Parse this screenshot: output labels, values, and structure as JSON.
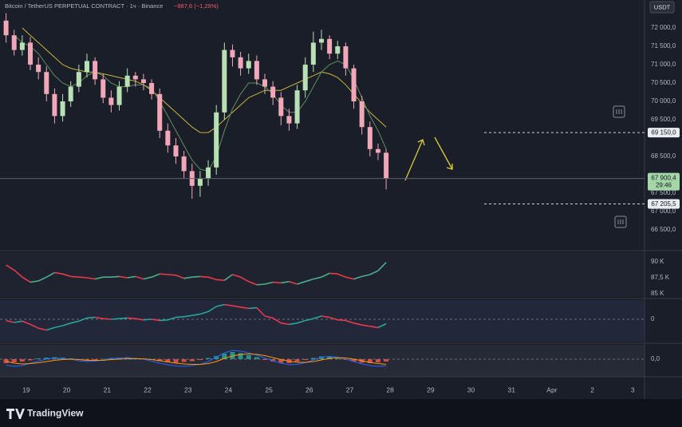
{
  "header": {
    "title": "Bitcoin / TetherUS PERPETUAL CONTRACT · 1ч · Binance",
    "change": "−887,6 (−1,29%)",
    "currency": "USDT"
  },
  "footer": {
    "brand": "TradingView"
  },
  "chart_data": [
    {
      "type": "candlestick",
      "up_color": "#b9e0b4",
      "down_color": "#f2a7b8",
      "x": [
        -0.5,
        -0.3,
        -0.1,
        0.1,
        0.3,
        0.5,
        0.7,
        0.9,
        1.1,
        1.3,
        1.5,
        1.7,
        1.9,
        2.1,
        2.3,
        2.5,
        2.7,
        2.9,
        3.1,
        3.3,
        3.5,
        3.7,
        3.9,
        4.1,
        4.3,
        4.5,
        4.7,
        4.9,
        5.1,
        5.3,
        5.5,
        5.7,
        5.9,
        6.1,
        6.3,
        6.5,
        6.7,
        6.9,
        7.1,
        7.3,
        7.5,
        7.7,
        7.9,
        8.1,
        8.3,
        8.5,
        8.7,
        8.9
      ],
      "open": [
        72200,
        71800,
        71400,
        71600,
        71000,
        70800,
        70200,
        69600,
        70000,
        70400,
        70800,
        71100,
        70600,
        70100,
        69900,
        70400,
        70700,
        70600,
        70500,
        70200,
        69200,
        68800,
        68500,
        68100,
        67700,
        67900,
        68200,
        69700,
        71400,
        71200,
        70900,
        71100,
        70600,
        70400,
        70100,
        69600,
        69400,
        70300,
        71000,
        71600,
        71700,
        71300,
        71500,
        70900,
        70000,
        69300,
        68700,
        68600
      ],
      "high": [
        72400,
        71950,
        71800,
        71750,
        71200,
        70950,
        70350,
        70200,
        70550,
        71000,
        71300,
        71200,
        70750,
        70300,
        70550,
        70900,
        70800,
        70750,
        70600,
        70350,
        69400,
        69000,
        68650,
        68300,
        68100,
        68400,
        69900,
        71600,
        71550,
        71350,
        71300,
        71250,
        70750,
        70550,
        70250,
        69800,
        70450,
        71200,
        71900,
        71950,
        71800,
        71650,
        71600,
        71000,
        70150,
        69450,
        68850,
        68700
      ],
      "low": [
        71600,
        71250,
        71250,
        70850,
        70600,
        70000,
        69400,
        69450,
        69850,
        70250,
        70650,
        70450,
        69950,
        69700,
        69750,
        70250,
        70400,
        70300,
        70050,
        69000,
        68600,
        68300,
        67900,
        67350,
        67400,
        67700,
        68000,
        69500,
        70950,
        70700,
        70750,
        70450,
        70200,
        69900,
        69350,
        69200,
        69250,
        70100,
        70800,
        71400,
        71150,
        71150,
        70700,
        69800,
        69100,
        68500,
        68400,
        67600
      ],
      "close": [
        71800,
        71400,
        71600,
        71000,
        70800,
        70200,
        69600,
        70000,
        70400,
        70800,
        71100,
        70600,
        70100,
        69900,
        70400,
        70700,
        70600,
        70500,
        70200,
        69200,
        68800,
        68500,
        68100,
        67700,
        67900,
        68200,
        69700,
        71400,
        71200,
        70900,
        71100,
        70600,
        70400,
        70100,
        69600,
        69400,
        70300,
        71000,
        71600,
        71700,
        71300,
        71500,
        70900,
        70000,
        69300,
        68700,
        68600,
        67900.4
      ],
      "series": [
        {
          "color": "#c9b33c",
          "values": [
            null,
            null,
            72000,
            71800,
            71600,
            71400,
            71200,
            71000,
            70900,
            70850,
            70800,
            70800,
            70750,
            70700,
            70650,
            70600,
            70550,
            70450,
            70300,
            70100,
            69900,
            69700,
            69500,
            69300,
            69150,
            69150,
            69300,
            69500,
            69700,
            69900,
            70100,
            70200,
            70300,
            70300,
            70300,
            70400,
            70500,
            70600,
            70700,
            70800,
            70750,
            70650,
            70450,
            70200,
            69950,
            69700,
            69500,
            69300
          ]
        },
        {
          "color": "#5e8f5c",
          "values": [
            null,
            71800,
            71600,
            71500,
            71300,
            71000,
            70700,
            70500,
            70400,
            70500,
            70700,
            70800,
            70700,
            70500,
            70400,
            70400,
            70450,
            70450,
            70350,
            70000,
            69600,
            69200,
            68800,
            68400,
            68150,
            68100,
            68500,
            69200,
            69800,
            70200,
            70500,
            70500,
            70400,
            70200,
            69900,
            69700,
            69700,
            70000,
            70400,
            70800,
            71000,
            71100,
            71000,
            70600,
            70100,
            69600,
            69200,
            68700
          ]
        }
      ],
      "xlim": [
        -0.65,
        15.29
      ],
      "xticks": [
        {
          "value": 0,
          "label": "19"
        },
        {
          "value": 1,
          "label": "20"
        },
        {
          "value": 2,
          "label": "21"
        },
        {
          "value": 3,
          "label": "22"
        },
        {
          "value": 4,
          "label": "23"
        },
        {
          "value": 5,
          "label": "24"
        },
        {
          "value": 6,
          "label": "25"
        },
        {
          "value": 7,
          "label": "26"
        },
        {
          "value": 8,
          "label": "27"
        },
        {
          "value": 9,
          "label": "28"
        },
        {
          "value": 10,
          "label": "29"
        },
        {
          "value": 11,
          "label": "30"
        },
        {
          "value": 12,
          "label": "31"
        },
        {
          "value": 13,
          "label": "Apr"
        },
        {
          "value": 14,
          "label": "2"
        },
        {
          "value": 15,
          "label": "3"
        }
      ],
      "ylim": [
        65978,
        72761
      ],
      "yticks": [
        {
          "value": 72000,
          "label": "72 000,0"
        },
        {
          "value": 71500,
          "label": "71 500,0"
        },
        {
          "value": 71000,
          "label": "71 000,0"
        },
        {
          "value": 70500,
          "label": "70 500,0"
        },
        {
          "value": 70000,
          "label": "70 000,0"
        },
        {
          "value": 69500,
          "label": "69 500,0"
        },
        {
          "value": 68500,
          "label": "68 500,0"
        },
        {
          "value": 67500,
          "label": "67 500,0"
        },
        {
          "value": 67000,
          "label": "67 000,0"
        },
        {
          "value": 66500,
          "label": "66 500,0"
        }
      ],
      "price_lines": [
        {
          "value": 69150,
          "label": "69 150,0"
        },
        {
          "value": 67205.5,
          "label": "67 205,5"
        }
      ],
      "last_price": {
        "value": 67900.4,
        "label": "67 900,4",
        "countdown": "29:46"
      },
      "grid": false
    },
    {
      "type": "line",
      "up_color": "#4caf8a",
      "down_color": "#e8394a",
      "values": [
        89500,
        88700,
        87600,
        86800,
        87000,
        87600,
        88300,
        88100,
        87700,
        87600,
        87500,
        87300,
        87600,
        87600,
        87700,
        87500,
        87700,
        87300,
        87600,
        88100,
        88000,
        87900,
        87400,
        87600,
        87700,
        87600,
        87200,
        87100,
        88000,
        87600,
        86900,
        86400,
        86500,
        86800,
        86700,
        86900,
        86500,
        86900,
        87300,
        87600,
        88200,
        88100,
        87600,
        87300,
        87700,
        88000,
        88600,
        89900
      ],
      "ylim": [
        84500,
        91500
      ],
      "yticks": [
        {
          "value": 90000,
          "label": "90 K"
        },
        {
          "value": 87500,
          "label": "87,5 K"
        },
        {
          "value": 85000,
          "label": "85 K"
        }
      ],
      "grid": false
    },
    {
      "type": "line",
      "up_color": "#26a69a",
      "down_color": "#e8394a",
      "values": [
        -0.2,
        -0.5,
        -0.3,
        -0.8,
        -1.4,
        -1.7,
        -1.3,
        -1.0,
        -0.6,
        -0.3,
        0.2,
        0.3,
        0.1,
        0.0,
        0.1,
        0.2,
        0.1,
        -0.1,
        0.0,
        -0.2,
        -0.1,
        0.3,
        0.4,
        0.6,
        0.8,
        1.2,
        2.0,
        2.3,
        2.1,
        1.9,
        1.7,
        1.8,
        0.5,
        0.2,
        -0.6,
        -0.8,
        -0.6,
        -0.2,
        0.1,
        0.5,
        0.3,
        -0.1,
        -0.2,
        -0.6,
        -0.9,
        -1.1,
        -1.3,
        -0.7
      ],
      "ylim": [
        -3.5,
        3
      ],
      "yticks": [
        0
      ],
      "grid": true
    },
    {
      "type": "macd",
      "up_color": "#26a69a",
      "down_color": "#ef5350",
      "values": [
        -1.0,
        -0.8,
        -0.6,
        -0.3,
        0.2,
        0.4,
        0.5,
        0.4,
        0.2,
        -0.1,
        -0.3,
        -0.2,
        0.1,
        0.3,
        0.4,
        0.5,
        0.3,
        0.1,
        -0.2,
        -0.5,
        -0.8,
        -0.9,
        -0.7,
        -0.5,
        -0.2,
        0.3,
        0.8,
        1.4,
        1.8,
        1.5,
        1.0,
        0.5,
        -0.2,
        -0.6,
        -0.9,
        -1.0,
        -0.6,
        -0.2,
        0.3,
        0.7,
        0.6,
        0.2,
        -0.2,
        -0.6,
        -0.9,
        -1.0,
        -0.8,
        -0.6
      ],
      "series": [
        {
          "color": "#2962ff",
          "values": [
            -1.5,
            -1.8,
            -1.6,
            -1.0,
            -0.5,
            0.0,
            0.3,
            0.2,
            0.0,
            -0.4,
            -0.6,
            -0.5,
            -0.2,
            0.2,
            0.3,
            0.4,
            0.2,
            0.0,
            -0.5,
            -1.0,
            -1.4,
            -1.7,
            -1.8,
            -1.6,
            -1.3,
            -0.6,
            0.5,
            1.6,
            2.2,
            2.0,
            1.6,
            1.0,
            0.3,
            -0.4,
            -1.0,
            -1.4,
            -1.3,
            -0.9,
            -0.2,
            0.5,
            0.7,
            0.5,
            0.0,
            -0.6,
            -1.2,
            -1.6,
            -1.8,
            -1.7
          ]
        },
        {
          "color": "#ff9800",
          "values": [
            -0.5,
            -1.0,
            -1.2,
            -1.1,
            -0.9,
            -0.6,
            -0.3,
            -0.1,
            0.0,
            -0.1,
            -0.3,
            -0.3,
            -0.3,
            -0.1,
            0.0,
            0.1,
            0.1,
            0.1,
            -0.1,
            -0.4,
            -0.7,
            -1.0,
            -1.2,
            -1.3,
            -1.3,
            -1.1,
            -0.6,
            0.2,
            0.8,
            1.2,
            1.3,
            1.2,
            0.9,
            0.4,
            -0.1,
            -0.5,
            -0.8,
            -0.8,
            -0.6,
            -0.2,
            0.2,
            0.4,
            0.3,
            0.0,
            -0.4,
            -0.8,
            -1.1,
            -1.3
          ]
        }
      ],
      "ylim": [
        -4.4,
        3.6
      ],
      "yticks": [
        {
          "value": 0,
          "label": "0,0"
        }
      ],
      "grid": true
    }
  ]
}
